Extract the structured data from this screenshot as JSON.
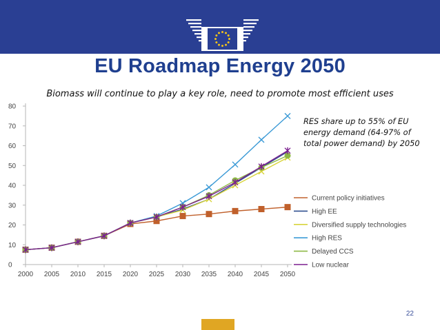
{
  "slide": {
    "title": "EU Roadmap Energy 2050",
    "subtitle": "Biomass will continue to play a key role, need to promote most efficient uses",
    "annotation": "RES share up to 55% of EU energy demand (64-97% of total power demand) by 2050",
    "page_number": "22",
    "colors": {
      "banner": "#2a3f93",
      "title": "#1f3f8f",
      "accent": "#e0a623",
      "eu_star": "#f5c518"
    }
  },
  "chart_data": {
    "type": "line",
    "title": "",
    "xlabel": "",
    "ylabel": "",
    "x": [
      2000,
      2005,
      2010,
      2015,
      2020,
      2025,
      2030,
      2035,
      2040,
      2045,
      2050
    ],
    "xlim": [
      2000,
      2050
    ],
    "ylim": [
      0,
      80
    ],
    "yticks": [
      0,
      10,
      20,
      30,
      40,
      50,
      60,
      70,
      80
    ],
    "ytick_labels": [
      "0",
      "10",
      "20",
      "30",
      "40",
      "50",
      "60",
      "70",
      "80"
    ],
    "xtick_labels": [
      "2000",
      "2005",
      "2010",
      "2015",
      "2020",
      "2025",
      "2030",
      "2035",
      "2040",
      "2045",
      "2050"
    ],
    "grid": false,
    "legend": "bottom-right",
    "series": [
      {
        "name": "Current policy initiatives",
        "color": "#c0602b",
        "marker": "square",
        "values": [
          7.5,
          8.5,
          11.5,
          14.5,
          20.5,
          22,
          24.5,
          25.5,
          27,
          28,
          29
        ]
      },
      {
        "name": "High EE",
        "color": "#2f4f8f",
        "marker": "none",
        "values": [
          7.5,
          8.5,
          11.5,
          14.5,
          21,
          24,
          28,
          33,
          41,
          49,
          57
        ]
      },
      {
        "name": "Diversified supply technologies",
        "color": "#d8d43a",
        "marker": "x",
        "values": [
          7.5,
          8.5,
          11.5,
          14.5,
          21,
          24,
          27.5,
          33,
          40,
          47,
          54
        ]
      },
      {
        "name": "High RES",
        "color": "#3b9ad6",
        "marker": "x",
        "values": [
          7.5,
          8.5,
          11.5,
          14.5,
          21,
          24.5,
          31,
          39,
          50.5,
          63,
          75
        ]
      },
      {
        "name": "Delayed CCS",
        "color": "#8db844",
        "marker": "circle",
        "values": [
          7.5,
          8.5,
          11.5,
          14.5,
          21,
          24,
          29,
          35,
          42.5,
          49,
          55
        ]
      },
      {
        "name": "Low nuclear",
        "color": "#7b1f8f",
        "marker": "star",
        "values": [
          7.5,
          8.5,
          11.5,
          14.5,
          21,
          24,
          29,
          34.5,
          41.5,
          49.5,
          57.5
        ]
      }
    ]
  }
}
